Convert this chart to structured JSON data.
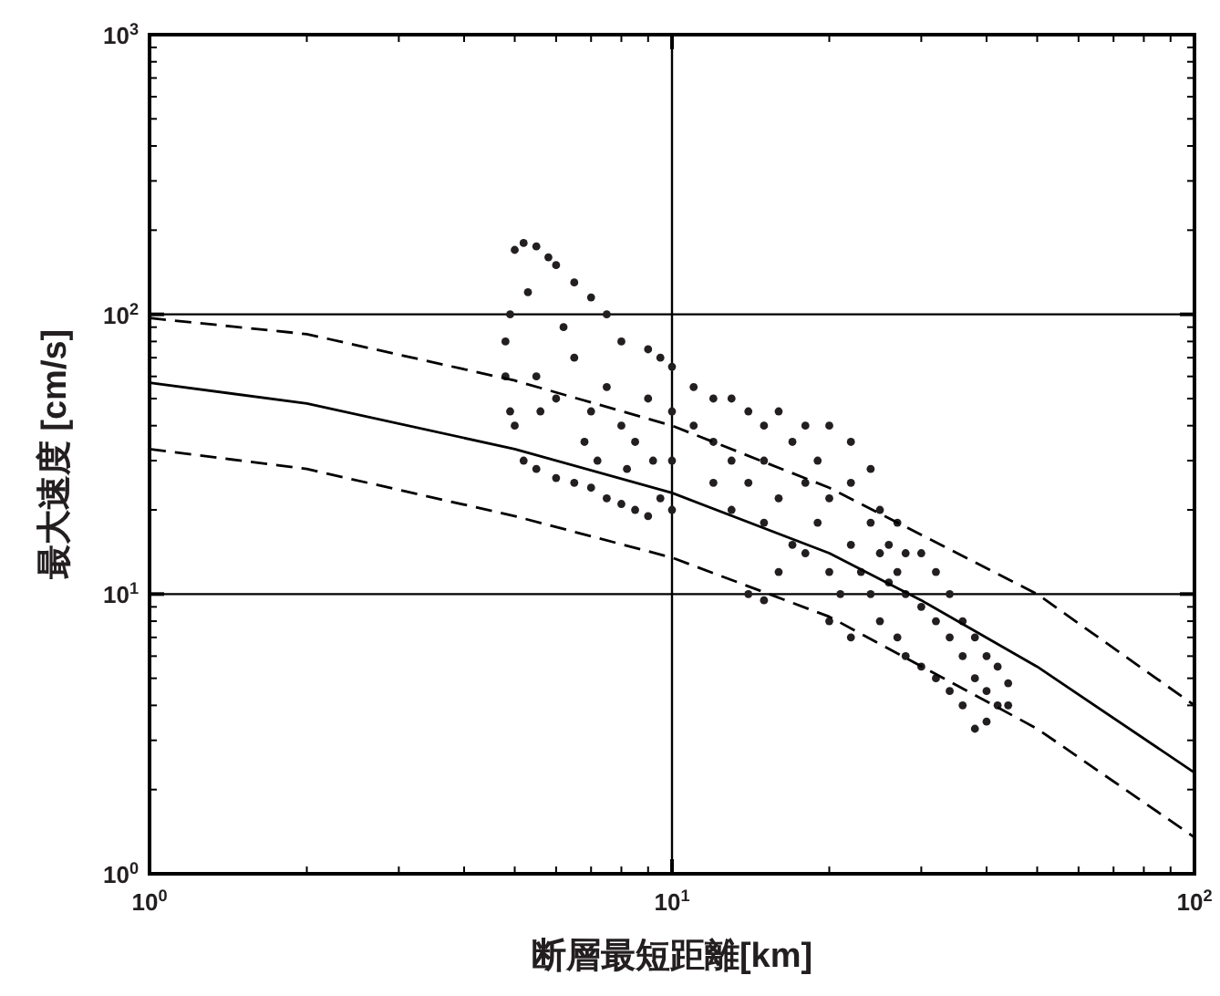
{
  "chart_data": {
    "type": "scatter",
    "xlabel": "断層最短距離[km]",
    "ylabel": "最大速度 [cm/s]",
    "log": "xy",
    "grid": true,
    "xlim": [
      1,
      100
    ],
    "ylim": [
      1,
      1000
    ],
    "xticks": [
      {
        "value": 1,
        "label": "10$^{0}$"
      },
      {
        "value": 10,
        "label": "10$^{1}$"
      },
      {
        "value": 100,
        "label": "10$^{2}$"
      }
    ],
    "yticks": [
      {
        "value": 1,
        "label": "10$^{0}$"
      },
      {
        "value": 10,
        "label": "10$^{1}$"
      },
      {
        "value": 100,
        "label": "10$^{2}$"
      },
      {
        "value": 1000,
        "label": "10$^{3}$"
      }
    ],
    "series": [
      {
        "color": "#231f20",
        "marker": "circle",
        "x": [
          5,
          5.2,
          5.5,
          5.8,
          6,
          6.5,
          7,
          7.5,
          8,
          9,
          9.5,
          10,
          4.9,
          4.8,
          4.8,
          4.9,
          5,
          5.2,
          5.5,
          6,
          6.5,
          7,
          7.5,
          8,
          8.5,
          9,
          9.5,
          10,
          5.5,
          6,
          6.5,
          7,
          7.5,
          8,
          8.5,
          9,
          5.3,
          6.2,
          5.6,
          6.8,
          7.2,
          8.2,
          9.2,
          10,
          10,
          11,
          11,
          12,
          12,
          12,
          13,
          13,
          13,
          14,
          14,
          15,
          15,
          15,
          16,
          16,
          17,
          17,
          18,
          18,
          18,
          19,
          19,
          20,
          20,
          20,
          20,
          21,
          22,
          22,
          22,
          22,
          23,
          24,
          24,
          24,
          25,
          25,
          25,
          26,
          26,
          27,
          27,
          27,
          28,
          28,
          28,
          30,
          30,
          30,
          32,
          32,
          32,
          34,
          34,
          34,
          36,
          36,
          36,
          38,
          38,
          38,
          40,
          40,
          40,
          42,
          42,
          44,
          44,
          16,
          14,
          15
        ],
        "values": [
          170,
          180,
          175,
          160,
          150,
          130,
          115,
          100,
          80,
          75,
          70,
          65,
          100,
          80,
          60,
          45,
          40,
          30,
          28,
          26,
          25,
          24,
          22,
          21,
          20,
          19,
          22,
          20,
          60,
          50,
          70,
          45,
          55,
          40,
          35,
          50,
          120,
          90,
          45,
          35,
          30,
          28,
          30,
          30,
          45,
          40,
          55,
          50,
          35,
          25,
          50,
          30,
          20,
          45,
          25,
          40,
          30,
          18,
          45,
          22,
          35,
          15,
          40,
          25,
          14,
          30,
          18,
          40,
          22,
          12,
          8,
          10,
          35,
          25,
          15,
          7,
          12,
          28,
          18,
          10,
          20,
          14,
          8,
          15,
          11,
          18,
          12,
          7,
          14,
          10,
          6,
          14,
          9,
          5.5,
          12,
          8,
          5,
          10,
          7,
          4.5,
          8,
          6,
          4,
          7,
          5,
          3.3,
          6,
          4.5,
          3.5,
          5.5,
          4,
          4.8,
          4,
          12,
          10,
          9.5
        ]
      },
      {
        "type": "line",
        "color": "#000000",
        "line_style": "solid",
        "x": [
          1,
          2,
          5,
          10,
          20,
          30,
          50,
          100
        ],
        "values": [
          57,
          48,
          33,
          23,
          14,
          9.5,
          5.5,
          2.3
        ]
      },
      {
        "type": "line",
        "color": "#000000",
        "line_style": "dashed",
        "x": [
          1,
          2,
          5,
          10,
          20,
          50,
          100
        ],
        "values": [
          97,
          85,
          58,
          40,
          24,
          10,
          4
        ]
      },
      {
        "type": "line",
        "color": "#000000",
        "line_style": "dashed",
        "x": [
          1,
          2,
          5,
          10,
          20,
          50,
          100
        ],
        "values": [
          33,
          28,
          19,
          13.5,
          8.3,
          3.3,
          1.35
        ]
      }
    ]
  }
}
